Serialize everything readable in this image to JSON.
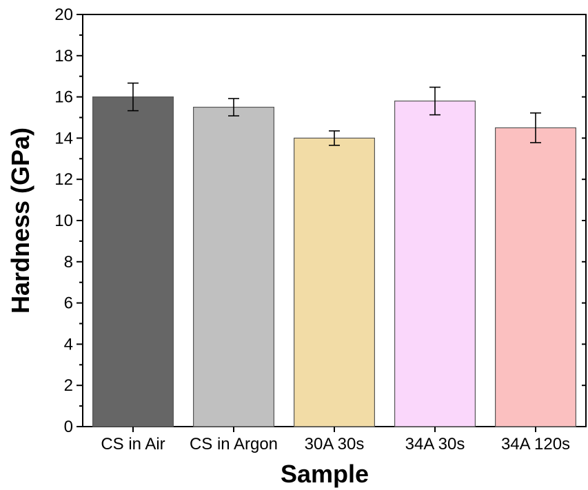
{
  "chart_data": {
    "type": "bar",
    "title": "",
    "xlabel": "Sample",
    "ylabel": "Hardness (GPa)",
    "categories": [
      "CS in Air",
      "CS in Argon",
      "30A 30s",
      "34A 30s",
      "34A 120s"
    ],
    "values": [
      16.0,
      15.5,
      14.0,
      15.8,
      14.5
    ],
    "errors": [
      0.67,
      0.42,
      0.35,
      0.67,
      0.72
    ],
    "colors": [
      "#666666",
      "#c0c0c0",
      "#f2dca6",
      "#fad7fb",
      "#fbc0c0"
    ],
    "ylim": [
      0,
      20
    ],
    "yticks": [
      0,
      2,
      4,
      6,
      8,
      10,
      12,
      14,
      16,
      18,
      20
    ],
    "ytick_labels": [
      "0",
      "2",
      "4",
      "6",
      "8",
      "10",
      "12",
      "14",
      "16",
      "18",
      "20"
    ],
    "grid": false,
    "legend": false
  }
}
